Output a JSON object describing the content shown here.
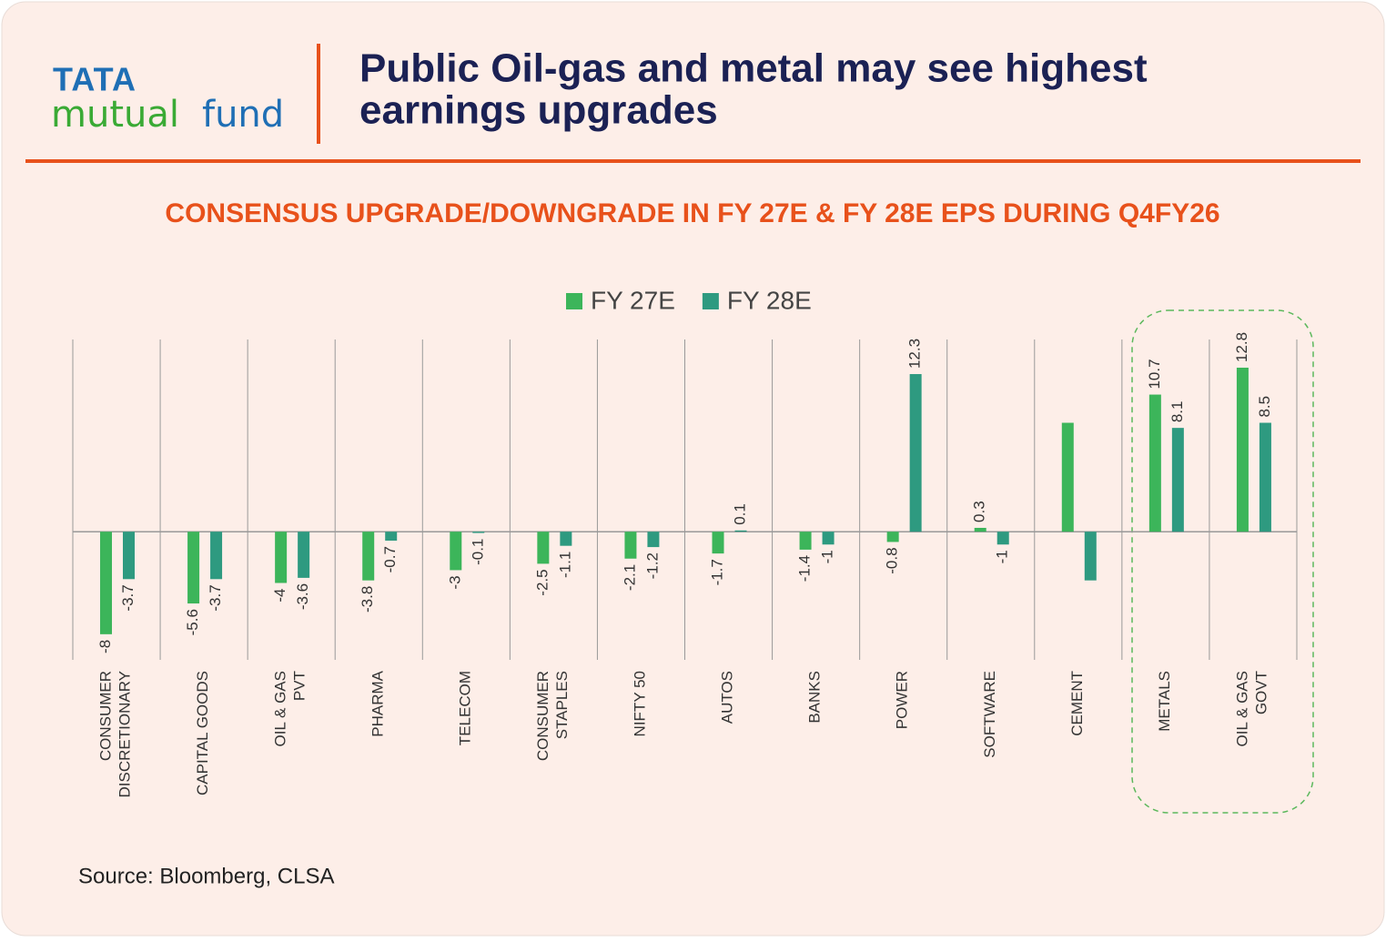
{
  "header": {
    "logo_top": "TATA",
    "logo_bottom_1": "mutual",
    "logo_bottom_2": "fund",
    "title_line_1": "Public Oil-gas and metal may see highest",
    "title_line_2": "earnings upgrades"
  },
  "chart_data": {
    "type": "bar",
    "title": "CONSENSUS UPGRADE/DOWNGRADE IN FY 27E & FY 28E EPS DURING Q4FY26",
    "categories": [
      "CONSUMER\nDISCRETIONARY",
      "CAPITAL GOODS",
      "OIL & GAS\nPVT",
      "PHARMA",
      "TELECOM",
      "CONSUMER\nSTAPLES",
      "NIFTY 50",
      "AUTOS",
      "BANKS",
      "POWER",
      "SOFTWARE",
      "CEMENT",
      "METALS",
      "OIL & GAS\nGOVT"
    ],
    "series": [
      {
        "name": "FY 27E",
        "color": "#3cb55a",
        "values": [
          -8,
          -5.6,
          -4,
          -3.8,
          -3,
          -2.5,
          -2.1,
          -1.7,
          -1.4,
          -0.8,
          0.3,
          8.5,
          10.7,
          12.8
        ],
        "value_labels": [
          "-8",
          "-5.6",
          "-4",
          "-3.8",
          "-3",
          "-2.5",
          "-2.1",
          "-1.7",
          "-1.4",
          "-0.8",
          "0.3",
          null,
          "10.7",
          "12.8"
        ]
      },
      {
        "name": "FY 28E",
        "color": "#2e9a80",
        "values": [
          -3.7,
          -3.7,
          -3.6,
          -0.7,
          -0.1,
          -1.1,
          -1.2,
          0.1,
          -1,
          12.3,
          -1,
          -3.8,
          8.1,
          8.5
        ],
        "value_labels": [
          "-3.7",
          "-3.7",
          "-3.6",
          "-0.7",
          "-0.1",
          "-1.1",
          "-1.2",
          "0.1",
          "-1",
          "12.3",
          "-1",
          null,
          "8.1",
          "8.5"
        ]
      }
    ],
    "ylim": [
      -10,
      15
    ],
    "legend": "top",
    "source": "Source: Bloomberg, CLSA"
  }
}
